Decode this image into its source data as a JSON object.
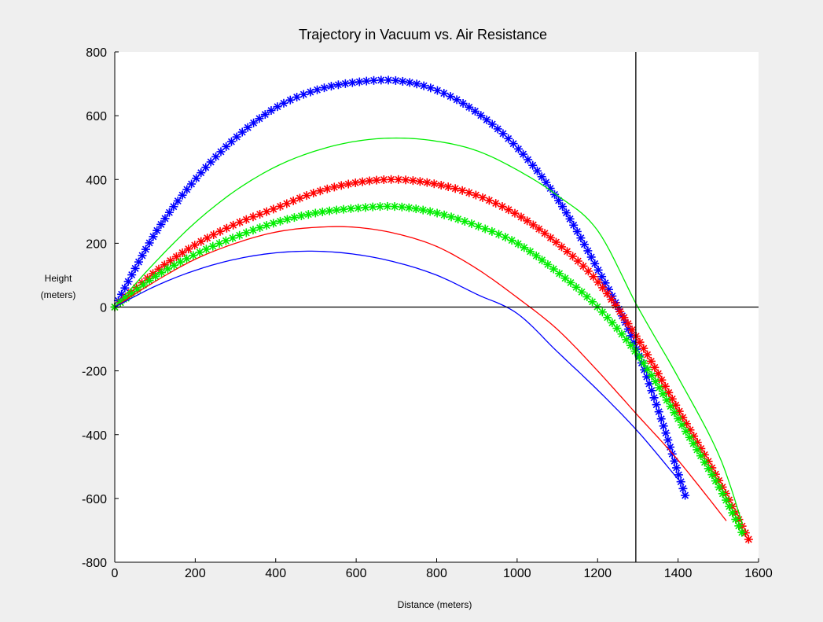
{
  "colors": {
    "figure_background": "#efefef",
    "axes_background": "#ffffff",
    "blue": "#0000ff",
    "red": "#ff0000",
    "green": "#00ee00",
    "reference_lines": "#000000"
  },
  "chart_data": {
    "type": "line",
    "title": "Trajectory in Vacuum vs. Air Resistance",
    "xlabel": "Distance (meters)",
    "ylabel_lines": [
      "Height",
      "(meters)"
    ],
    "xlim": [
      0,
      1600
    ],
    "ylim": [
      -800,
      800
    ],
    "xticks": [
      0,
      200,
      400,
      600,
      800,
      1000,
      1200,
      1400,
      1600
    ],
    "yticks": [
      -800,
      -600,
      -400,
      -200,
      0,
      200,
      400,
      600,
      800
    ],
    "grid": false,
    "legend": "none",
    "reference_lines": {
      "horizontal_y": 0,
      "vertical_x": 1295
    },
    "series": [
      {
        "color": "blue",
        "style": "asterisk-markers",
        "points": [
          [
            0,
            0
          ],
          [
            100,
            230
          ],
          [
            200,
            400
          ],
          [
            300,
            530
          ],
          [
            400,
            625
          ],
          [
            500,
            680
          ],
          [
            600,
            705
          ],
          [
            700,
            710
          ],
          [
            800,
            680
          ],
          [
            900,
            610
          ],
          [
            1000,
            500
          ],
          [
            1100,
            340
          ],
          [
            1200,
            120
          ],
          [
            1280,
            -80
          ],
          [
            1350,
            -320
          ],
          [
            1400,
            -520
          ],
          [
            1420,
            -600
          ]
        ]
      },
      {
        "color": "red",
        "style": "asterisk-markers",
        "points": [
          [
            0,
            0
          ],
          [
            100,
            110
          ],
          [
            200,
            195
          ],
          [
            300,
            260
          ],
          [
            400,
            310
          ],
          [
            500,
            360
          ],
          [
            600,
            390
          ],
          [
            700,
            400
          ],
          [
            800,
            385
          ],
          [
            900,
            350
          ],
          [
            1000,
            290
          ],
          [
            1100,
            200
          ],
          [
            1200,
            80
          ],
          [
            1300,
            -100
          ],
          [
            1400,
            -320
          ],
          [
            1500,
            -540
          ],
          [
            1580,
            -740
          ]
        ]
      },
      {
        "color": "green",
        "style": "asterisk-markers",
        "points": [
          [
            0,
            0
          ],
          [
            100,
            95
          ],
          [
            200,
            165
          ],
          [
            300,
            220
          ],
          [
            400,
            265
          ],
          [
            500,
            295
          ],
          [
            600,
            310
          ],
          [
            700,
            315
          ],
          [
            800,
            295
          ],
          [
            900,
            255
          ],
          [
            1000,
            200
          ],
          [
            1100,
            110
          ],
          [
            1200,
            0
          ],
          [
            1300,
            -150
          ],
          [
            1400,
            -350
          ],
          [
            1500,
            -560
          ],
          [
            1560,
            -710
          ]
        ]
      },
      {
        "color": "green",
        "style": "solid-line",
        "points": [
          [
            0,
            0
          ],
          [
            100,
            140
          ],
          [
            200,
            265
          ],
          [
            300,
            365
          ],
          [
            400,
            440
          ],
          [
            500,
            490
          ],
          [
            600,
            520
          ],
          [
            700,
            530
          ],
          [
            800,
            520
          ],
          [
            900,
            490
          ],
          [
            1000,
            430
          ],
          [
            1100,
            350
          ],
          [
            1200,
            240
          ],
          [
            1300,
            0
          ],
          [
            1400,
            -220
          ],
          [
            1500,
            -460
          ],
          [
            1560,
            -680
          ]
        ]
      },
      {
        "color": "red",
        "style": "solid-line",
        "points": [
          [
            0,
            0
          ],
          [
            100,
            80
          ],
          [
            200,
            150
          ],
          [
            300,
            200
          ],
          [
            400,
            235
          ],
          [
            500,
            250
          ],
          [
            600,
            250
          ],
          [
            700,
            230
          ],
          [
            800,
            190
          ],
          [
            900,
            120
          ],
          [
            1000,
            30
          ],
          [
            1100,
            -70
          ],
          [
            1200,
            -200
          ],
          [
            1300,
            -340
          ],
          [
            1400,
            -480
          ],
          [
            1520,
            -670
          ]
        ]
      },
      {
        "color": "blue",
        "style": "solid-line",
        "points": [
          [
            0,
            0
          ],
          [
            100,
            65
          ],
          [
            200,
            115
          ],
          [
            300,
            150
          ],
          [
            400,
            170
          ],
          [
            500,
            175
          ],
          [
            600,
            165
          ],
          [
            700,
            140
          ],
          [
            800,
            100
          ],
          [
            900,
            40
          ],
          [
            1000,
            -20
          ],
          [
            1100,
            -140
          ],
          [
            1200,
            -260
          ],
          [
            1300,
            -390
          ],
          [
            1400,
            -540
          ]
        ]
      }
    ]
  }
}
